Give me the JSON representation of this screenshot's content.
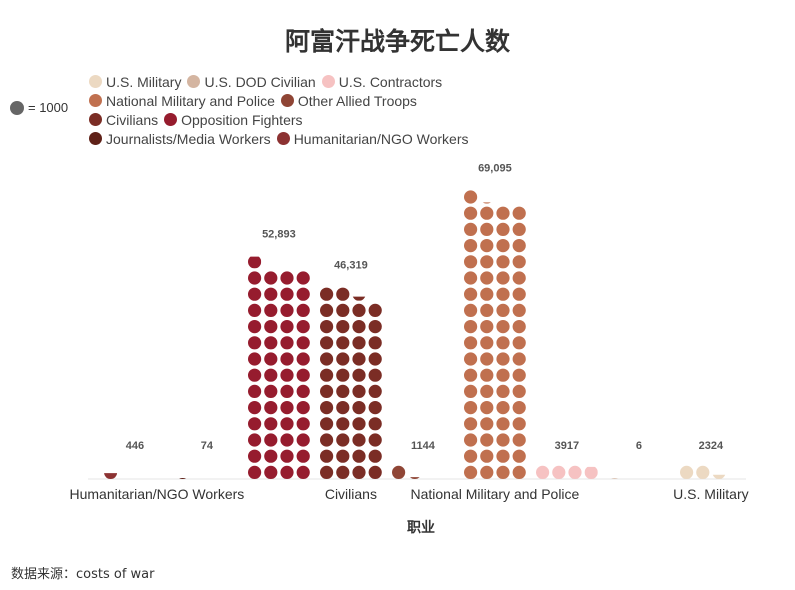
{
  "title": "阿富汗战争死亡人数",
  "scale_label": "= 1000",
  "source": "数据来源：costs of war",
  "legend": [
    [
      {
        "label": "U.S. Military",
        "color": "#ecd9c2"
      },
      {
        "label": "U.S. DOD Civilian",
        "color": "#d4b5a1"
      },
      {
        "label": "U.S. Contractors",
        "color": "#f6c2c2"
      }
    ],
    [
      {
        "label": "National Military and Police",
        "color": "#c0704f"
      },
      {
        "label": "Other Allied Troops",
        "color": "#8f4535"
      }
    ],
    [
      {
        "label": "Civilians",
        "color": "#7b2d25"
      },
      {
        "label": "Opposition Fighters",
        "color": "#961c2e"
      }
    ],
    [
      {
        "label": "Journalists/Media Workers",
        "color": "#5f2118"
      },
      {
        "label": "Humanitarian/NGO Workers",
        "color": "#8c3232"
      }
    ]
  ],
  "chart_data": {
    "type": "waffle",
    "unit": 1000,
    "xlabel": "职业",
    "x_tick_labels": [
      "Humanitarian/NGO Workers",
      "Civilians",
      "National Military and Police",
      "U.S. Military"
    ],
    "series": [
      {
        "name": "Humanitarian/NGO Workers",
        "value": 446,
        "label": "446",
        "color": "#8c3232"
      },
      {
        "name": "Journalists/Media Workers",
        "value": 74,
        "label": "74",
        "color": "#5f2118"
      },
      {
        "name": "Opposition Fighters",
        "value": 52893,
        "label": "52,893",
        "color": "#961c2e"
      },
      {
        "name": "Civilians",
        "value": 46319,
        "label": "46,319",
        "color": "#7b2d25"
      },
      {
        "name": "Other Allied Troops",
        "value": 1144,
        "label": "1144",
        "color": "#8f4535"
      },
      {
        "name": "National Military and Police",
        "value": 69095,
        "label": "69,095",
        "color": "#c0704f"
      },
      {
        "name": "U.S. Contractors",
        "value": 3917,
        "label": "3917",
        "color": "#f6c2c2"
      },
      {
        "name": "U.S. DOD Civilian",
        "value": 6,
        "label": "6",
        "color": "#d4b5a1"
      },
      {
        "name": "U.S. Military",
        "value": 2324,
        "label": "2324",
        "color": "#ecd9c2"
      }
    ]
  }
}
